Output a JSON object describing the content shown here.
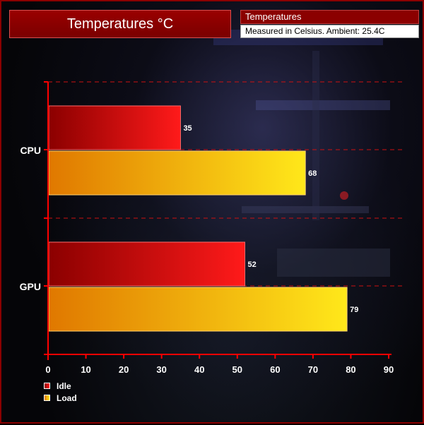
{
  "title": "Temperatures °C",
  "info": {
    "header": "Temperatures",
    "subtitle": "Measured in Celsius. Ambient: 25.4C"
  },
  "colors": {
    "idle_dark": "#8b0000",
    "idle_light": "#ff1a1a",
    "load_dark": "#e07800",
    "load_light": "#ffe81a",
    "axis": "#ff0000",
    "grid": "#cc1111"
  },
  "chart_data": {
    "type": "bar",
    "orientation": "horizontal",
    "categories": [
      "CPU",
      "GPU"
    ],
    "series": [
      {
        "name": "Idle",
        "values": [
          35,
          52
        ]
      },
      {
        "name": "Load",
        "values": [
          68,
          79
        ]
      }
    ],
    "xlim": [
      0,
      90
    ],
    "xticks": [
      0,
      10,
      20,
      30,
      40,
      50,
      60,
      70,
      80,
      90
    ],
    "grid": true,
    "legend_position": "bottom-left"
  }
}
